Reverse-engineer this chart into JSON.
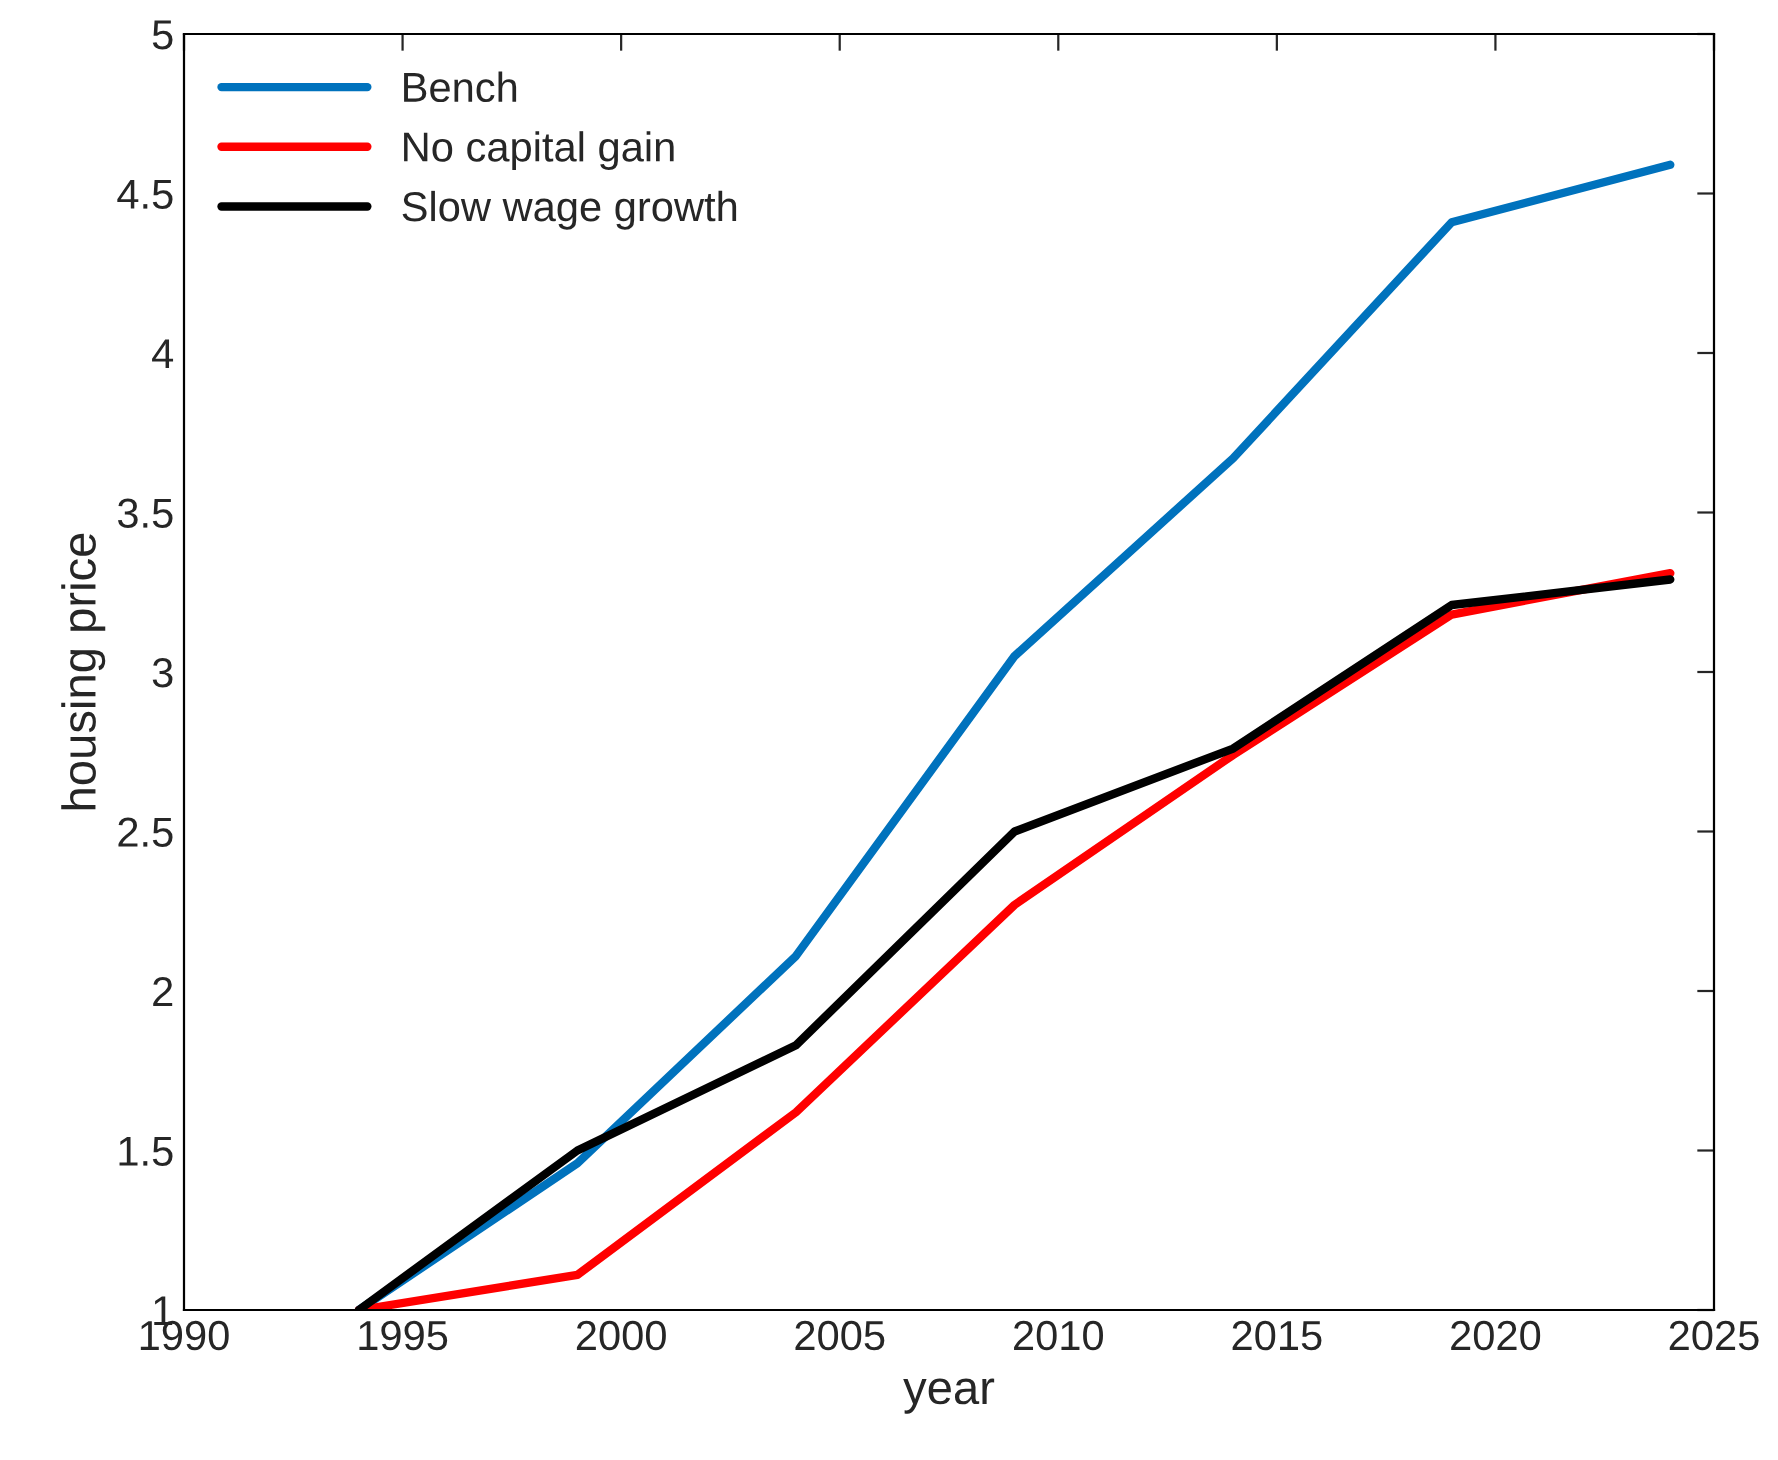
{
  "chart_data": {
    "type": "line",
    "xlabel": "year",
    "ylabel": "housing price",
    "x": [
      1994,
      1999,
      2004,
      2009,
      2014,
      2019,
      2024
    ],
    "series": [
      {
        "name": "Bench",
        "color": "#0072bd",
        "values": [
          1.0,
          1.46,
          2.11,
          3.05,
          3.67,
          4.41,
          4.59
        ]
      },
      {
        "name": "No capital gain",
        "color": "#ff0000",
        "values": [
          1.0,
          1.11,
          1.62,
          2.27,
          2.74,
          3.18,
          3.31
        ]
      },
      {
        "name": "Slow wage growth",
        "color": "#000000",
        "values": [
          1.0,
          1.5,
          1.83,
          2.5,
          2.76,
          3.21,
          3.29
        ]
      }
    ],
    "xlim": [
      1990,
      2025
    ],
    "xticks": [
      1990,
      1995,
      2000,
      2005,
      2010,
      2015,
      2020,
      2025
    ],
    "ylim": [
      1,
      5
    ],
    "yticks": [
      1,
      1.5,
      2,
      2.5,
      3,
      3.5,
      4,
      4.5,
      5
    ],
    "grid": false,
    "legend": "top left",
    "marker": "none",
    "line_style": "solid"
  }
}
